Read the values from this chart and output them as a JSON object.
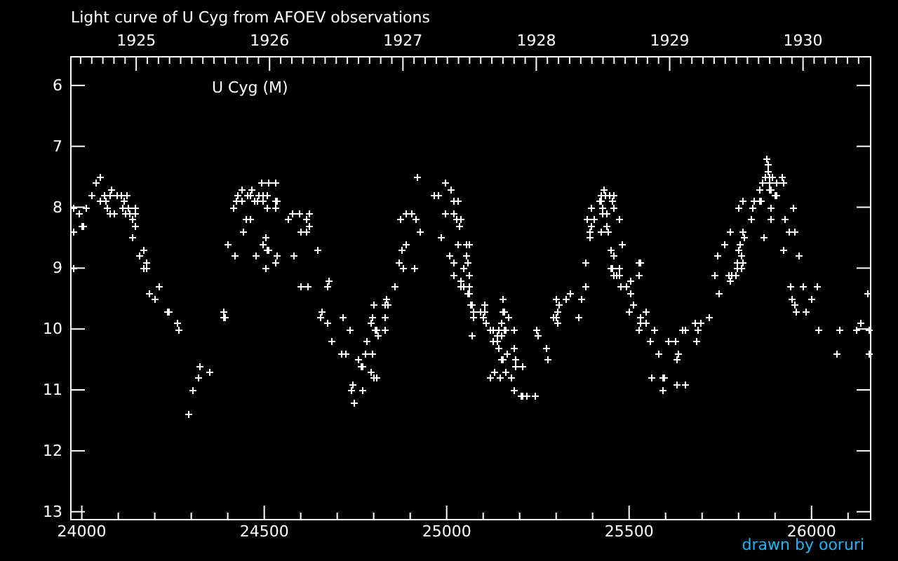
{
  "chart_data": {
    "type": "scatter",
    "title": "Light curve of U Cyg from AFOEV observations",
    "annotations": [
      "U Cyg (M)",
      "drawn by ooruri"
    ],
    "color": "#ffffff",
    "marker": "cross",
    "xlim": [
      23970,
      26162
    ],
    "ylim": [
      13.13,
      5.53
    ],
    "x2lim": [
      1924.51,
      1930.507
    ],
    "xticks": [
      24000,
      {
        "value": 24100,
        "label": null
      },
      {
        "value": 24200,
        "label": null
      },
      {
        "value": 24300,
        "label": null
      },
      {
        "value": 24400,
        "label": null
      },
      24500,
      {
        "value": 24600,
        "label": null
      },
      {
        "value": 24700,
        "label": null
      },
      {
        "value": 24800,
        "label": null
      },
      {
        "value": 24900,
        "label": null
      },
      25000,
      {
        "value": 25100,
        "label": null
      },
      {
        "value": 25200,
        "label": null
      },
      {
        "value": 25300,
        "label": null
      },
      {
        "value": 25400,
        "label": null
      },
      25500,
      {
        "value": 25600,
        "label": null
      },
      {
        "value": 25700,
        "label": null
      },
      {
        "value": 25800,
        "label": null
      },
      {
        "value": 25900,
        "label": null
      },
      26000,
      {
        "value": 26100,
        "label": null
      }
    ],
    "yticks": [
      6,
      7,
      8,
      9,
      10,
      11,
      12,
      13
    ],
    "x2ticks": [
      {
        "value": 1924.5833,
        "label": null
      },
      {
        "value": 1924.6667,
        "label": null
      },
      {
        "value": 1924.75,
        "label": null
      },
      {
        "value": 1924.8333,
        "label": null
      },
      {
        "value": 1924.9167,
        "label": null
      },
      1925,
      {
        "value": 1925.0833,
        "label": null
      },
      {
        "value": 1925.1667,
        "label": null
      },
      {
        "value": 1925.25,
        "label": null
      },
      {
        "value": 1925.3333,
        "label": null
      },
      {
        "value": 1925.4167,
        "label": null
      },
      {
        "value": 1925.5,
        "label": null
      },
      {
        "value": 1925.5833,
        "label": null
      },
      {
        "value": 1925.6667,
        "label": null
      },
      {
        "value": 1925.75,
        "label": null
      },
      {
        "value": 1925.8333,
        "label": null
      },
      {
        "value": 1925.9167,
        "label": null
      },
      1926,
      {
        "value": 1926.0833,
        "label": null
      },
      {
        "value": 1926.1667,
        "label": null
      },
      {
        "value": 1926.25,
        "label": null
      },
      {
        "value": 1926.3333,
        "label": null
      },
      {
        "value": 1926.4167,
        "label": null
      },
      {
        "value": 1926.5,
        "label": null
      },
      {
        "value": 1926.5833,
        "label": null
      },
      {
        "value": 1926.6667,
        "label": null
      },
      {
        "value": 1926.75,
        "label": null
      },
      {
        "value": 1926.8333,
        "label": null
      },
      {
        "value": 1926.9167,
        "label": null
      },
      1927,
      {
        "value": 1927.0833,
        "label": null
      },
      {
        "value": 1927.1667,
        "label": null
      },
      {
        "value": 1927.25,
        "label": null
      },
      {
        "value": 1927.3333,
        "label": null
      },
      {
        "value": 1927.4167,
        "label": null
      },
      {
        "value": 1927.5,
        "label": null
      },
      {
        "value": 1927.5833,
        "label": null
      },
      {
        "value": 1927.6667,
        "label": null
      },
      {
        "value": 1927.75,
        "label": null
      },
      {
        "value": 1927.8333,
        "label": null
      },
      {
        "value": 1927.9167,
        "label": null
      },
      1928,
      {
        "value": 1928.0833,
        "label": null
      },
      {
        "value": 1928.1667,
        "label": null
      },
      {
        "value": 1928.25,
        "label": null
      },
      {
        "value": 1928.3333,
        "label": null
      },
      {
        "value": 1928.4167,
        "label": null
      },
      {
        "value": 1928.5,
        "label": null
      },
      {
        "value": 1928.5833,
        "label": null
      },
      {
        "value": 1928.6667,
        "label": null
      },
      {
        "value": 1928.75,
        "label": null
      },
      {
        "value": 1928.8333,
        "label": null
      },
      {
        "value": 1928.9167,
        "label": null
      },
      1929,
      {
        "value": 1929.0833,
        "label": null
      },
      {
        "value": 1929.1667,
        "label": null
      },
      {
        "value": 1929.25,
        "label": null
      },
      {
        "value": 1929.3333,
        "label": null
      },
      {
        "value": 1929.4167,
        "label": null
      },
      {
        "value": 1929.5,
        "label": null
      },
      {
        "value": 1929.5833,
        "label": null
      },
      {
        "value": 1929.6667,
        "label": null
      },
      {
        "value": 1929.75,
        "label": null
      },
      {
        "value": 1929.8333,
        "label": null
      },
      {
        "value": 1929.9167,
        "label": null
      },
      1930,
      {
        "value": 1930.0833,
        "label": null
      },
      {
        "value": 1930.1667,
        "label": null
      },
      {
        "value": 1930.25,
        "label": null
      },
      {
        "value": 1930.3333,
        "label": null
      },
      {
        "value": 1930.4167,
        "label": null
      }
    ],
    "x": [
      23974,
      23977,
      23977,
      23991,
      23999,
      24004,
      24010,
      24027,
      24038,
      24050,
      24050,
      24061,
      24065,
      24069,
      24077,
      24077,
      24080,
      24088,
      24096,
      24107,
      24111,
      24115,
      24119,
      24123,
      24127,
      24131,
      24138,
      24138,
      24146,
      24146,
      24146,
      24158,
      24169,
      24169,
      24177,
      24177,
      24184,
      24200,
      24211,
      24234,
      24238,
      24261,
      24265,
      24292,
      24304,
      24319,
      24323,
      24350,
      24388,
      24388,
      24392,
      24400,
      24415,
      24419,
      24423,
      24427,
      24438,
      24438,
      24442,
      24450,
      24454,
      24461,
      24461,
      24465,
      24473,
      24477,
      24480,
      24484,
      24492,
      24496,
      24496,
      24496,
      24504,
      24504,
      24507,
      24507,
      24507,
      24511,
      24511,
      24530,
      24530,
      24530,
      24530,
      24534,
      24534,
      24565,
      24577,
      24580,
      24596,
      24600,
      24600,
      24615,
      24615,
      24619,
      24623,
      24623,
      24646,
      24654,
      24657,
      24673,
      24673,
      24677,
      24684,
      24711,
      24715,
      24723,
      24734,
      24738,
      24742,
      24746,
      24757,
      24763,
      24769,
      24769,
      24777,
      24780,
      24792,
      24792,
      24796,
      24796,
      24800,
      24800,
      24804,
      24807,
      24807,
      24811,
      24830,
      24830,
      24830,
      24834,
      24838,
      24857,
      24869,
      24873,
      24877,
      24880,
      24888,
      24888,
      24904,
      24911,
      24915,
      24919,
      24927,
      24965,
      24977,
      24984,
      24996,
      24996,
      25007,
      25011,
      25019,
      25019,
      25019,
      25019,
      25027,
      25030,
      25030,
      25034,
      25038,
      25038,
      25038,
      25046,
      25046,
      25053,
      25053,
      25057,
      25057,
      25061,
      25061,
      25061,
      25061,
      25065,
      25069,
      25069,
      25073,
      25073,
      25092,
      25100,
      25104,
      25104,
      25107,
      25119,
      25119,
      25127,
      25127,
      25130,
      25138,
      25138,
      25142,
      25142,
      25146,
      25150,
      25150,
      25150,
      25153,
      25153,
      25153,
      25157,
      25157,
      25161,
      25161,
      25165,
      25169,
      25177,
      25184,
      25184,
      25184,
      25188,
      25188,
      25204,
      25207,
      25207,
      25219,
      25242,
      25246,
      25250,
      25273,
      25277,
      25292,
      25300,
      25300,
      25304,
      25304,
      25307,
      25327,
      25338,
      25361,
      25369,
      25380,
      25380,
      25384,
      25392,
      25392,
      25396,
      25396,
      25404,
      25416,
      25423,
      25423,
      25423,
      25427,
      25427,
      25430,
      25434,
      25438,
      25438,
      25442,
      25446,
      25450,
      25450,
      25454,
      25454,
      25457,
      25457,
      25457,
      25457,
      25465,
      25473,
      25473,
      25473,
      25477,
      25480,
      25492,
      25500,
      25503,
      25503,
      25511,
      25527,
      25527,
      25527,
      25530,
      25530,
      25530,
      25546,
      25546,
      25557,
      25561,
      25569,
      25580,
      25592,
      25592,
      25596,
      25607,
      25627,
      25630,
      25630,
      25634,
      25646,
      25653,
      25653,
      25680,
      25684,
      25688,
      25696,
      25719,
      25734,
      25742,
      25746,
      25761,
      25773,
      25777,
      25777,
      25780,
      25792,
      25796,
      25796,
      25800,
      25800,
      25804,
      25807,
      25807,
      25811,
      25811,
      25811,
      25815,
      25834,
      25838,
      25842,
      25857,
      25857,
      25861,
      25865,
      25869,
      25873,
      25876,
      25880,
      25880,
      25884,
      25884,
      25884,
      25888,
      25888,
      25888,
      25892,
      25900,
      25904,
      25904,
      25919,
      25923,
      25923,
      25927,
      25938,
      25942,
      25946,
      25950,
      25953,
      25953,
      25957,
      25965,
      25977,
      25984,
      25999,
      26015,
      26019,
      26069,
      26077,
      26123,
      26134,
      26153,
      26158,
      26158
    ],
    "values": [
      8.0,
      8.4,
      9.0,
      8.1,
      8.3,
      8.3,
      8.0,
      7.8,
      7.6,
      7.5,
      7.9,
      7.8,
      7.9,
      8.0,
      7.8,
      8.1,
      7.7,
      8.1,
      7.8,
      7.8,
      8.0,
      7.9,
      8.1,
      7.8,
      8.0,
      8.1,
      8.2,
      8.5,
      8.0,
      8.1,
      8.3,
      8.8,
      8.7,
      9.0,
      8.9,
      9.0,
      9.4,
      9.5,
      9.3,
      9.7,
      9.7,
      9.9,
      10.0,
      11.4,
      11.0,
      10.8,
      10.6,
      10.7,
      9.7,
      9.8,
      9.8,
      8.6,
      8.0,
      8.8,
      7.9,
      7.8,
      7.9,
      7.7,
      8.4,
      8.2,
      7.8,
      7.8,
      8.2,
      7.7,
      7.9,
      8.8,
      7.9,
      7.8,
      7.6,
      7.8,
      7.9,
      8.6,
      8.5,
      9.0,
      7.8,
      8.0,
      8.7,
      7.6,
      8.7,
      7.6,
      7.9,
      8.0,
      8.9,
      7.9,
      8.8,
      8.2,
      8.1,
      8.8,
      8.1,
      8.4,
      9.3,
      8.2,
      8.4,
      9.3,
      8.1,
      8.3,
      8.7,
      9.8,
      9.7,
      9.3,
      9.9,
      9.2,
      10.2,
      10.4,
      9.8,
      10.4,
      10.0,
      11.0,
      10.9,
      11.2,
      10.5,
      10.6,
      10.6,
      11.0,
      10.4,
      10.2,
      10.7,
      9.9,
      10.4,
      9.8,
      10.8,
      9.6,
      10.0,
      10.8,
      10.0,
      10.1,
      9.8,
      10.0,
      9.6,
      9.5,
      9.6,
      9.3,
      8.9,
      8.2,
      8.7,
      9.0,
      8.6,
      8.1,
      8.1,
      9.0,
      8.2,
      7.5,
      8.4,
      7.8,
      7.8,
      8.5,
      7.6,
      8.1,
      8.8,
      7.7,
      7.9,
      8.1,
      8.9,
      9.1,
      8.2,
      7.9,
      8.6,
      8.3,
      8.2,
      9.2,
      9.3,
      9.0,
      9.3,
      8.6,
      8.8,
      8.9,
      9.4,
      8.6,
      9.1,
      9.3,
      9.4,
      9.6,
      9.6,
      10.1,
      9.7,
      9.8,
      9.7,
      9.8,
      9.7,
      9.6,
      9.9,
      10.0,
      10.8,
      10.0,
      10.2,
      10.7,
      10.1,
      10.2,
      10.0,
      10.3,
      10.8,
      10.1,
      9.9,
      10.5,
      9.5,
      9.7,
      10.5,
      9.7,
      10.0,
      10.0,
      10.7,
      10.4,
      9.8,
      10.8,
      10.0,
      10.3,
      11.0,
      10.5,
      10.6,
      11.1,
      11.1,
      10.6,
      11.1,
      11.1,
      10.0,
      10.1,
      10.3,
      10.5,
      9.8,
      9.5,
      9.8,
      9.7,
      9.9,
      9.6,
      9.5,
      9.4,
      9.8,
      9.5,
      9.3,
      8.9,
      8.2,
      8.4,
      8.5,
      8.3,
      8.0,
      8.2,
      7.9,
      7.9,
      7.8,
      8.4,
      8.0,
      8.1,
      7.7,
      7.8,
      8.1,
      8.3,
      8.4,
      7.8,
      8.7,
      9.0,
      7.9,
      9.0,
      7.8,
      8.0,
      8.8,
      9.1,
      9.1,
      8.2,
      9.0,
      9.1,
      9.3,
      8.6,
      9.3,
      9.7,
      9.2,
      9.4,
      9.6,
      8.9,
      9.1,
      10.0,
      8.9,
      9.8,
      9.9,
      9.7,
      9.9,
      10.2,
      10.8,
      10.0,
      10.4,
      10.8,
      11.0,
      10.8,
      10.2,
      10.2,
      10.5,
      10.9,
      10.4,
      10.0,
      10.0,
      10.9,
      9.9,
      10.2,
      10.0,
      9.9,
      9.8,
      9.1,
      8.8,
      9.4,
      8.6,
      9.1,
      8.4,
      9.2,
      9.1,
      9.1,
      8.9,
      9.0,
      8.0,
      8.7,
      8.6,
      8.8,
      9.0,
      7.9,
      8.4,
      8.9,
      8.5,
      8.2,
      8.0,
      7.9,
      7.9,
      7.7,
      7.9,
      7.6,
      8.5,
      7.5,
      7.2,
      7.3,
      7.4,
      7.5,
      7.6,
      7.7,
      7.7,
      8.0,
      8.2,
      7.5,
      7.8,
      7.8,
      7.6,
      7.5,
      7.6,
      8.7,
      8.2,
      8.4,
      9.3,
      9.5,
      8.0,
      8.4,
      9.6,
      9.7,
      8.8,
      9.3,
      9.7,
      9.5,
      9.3,
      10.0,
      10.4,
      10.0,
      10.0,
      9.9,
      9.4,
      10.0,
      10.4
    ]
  }
}
